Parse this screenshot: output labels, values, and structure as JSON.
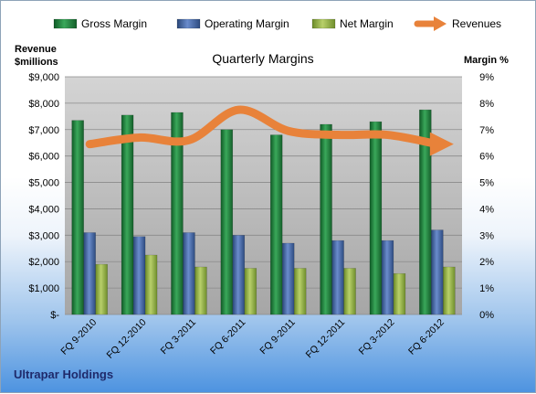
{
  "company_label": "Ultrapar Holdings",
  "colors": {
    "gross": "#1e7a3a",
    "operating": "#3c5f9e",
    "net": "#8fae3e",
    "revenues": "#e8823a"
  },
  "chart_data": {
    "type": "bar",
    "title": "Quarterly Margins",
    "ylabel_left": "Revenue $millions",
    "ylabel_right": "Margin %",
    "categories": [
      "FQ 9-2010",
      "FQ 12-2010",
      "FQ 3-2011",
      "FQ 6-2011",
      "FQ 9-2011",
      "FQ 12-2011",
      "FQ 3-2012",
      "FQ 6-2012"
    ],
    "y_left_ticks": [
      "$-",
      "$1,000",
      "$2,000",
      "$3,000",
      "$4,000",
      "$5,000",
      "$6,000",
      "$7,000",
      "$8,000",
      "$9,000"
    ],
    "y_right_ticks": [
      "0%",
      "1%",
      "2%",
      "3%",
      "4%",
      "5%",
      "6%",
      "7%",
      "8%",
      "9%"
    ],
    "ylim_left": [
      0,
      9000
    ],
    "ylim_right": [
      0,
      9
    ],
    "series": [
      {
        "name": "Gross Margin",
        "axis": "right",
        "type": "bar",
        "values": [
          7.35,
          7.55,
          7.65,
          7.0,
          6.8,
          7.2,
          7.3,
          7.75
        ]
      },
      {
        "name": "Operating Margin",
        "axis": "right",
        "type": "bar",
        "values": [
          3.1,
          2.95,
          3.1,
          3.0,
          2.7,
          2.8,
          2.8,
          3.2
        ]
      },
      {
        "name": "Net Margin",
        "axis": "right",
        "type": "bar",
        "values": [
          1.9,
          2.25,
          1.8,
          1.75,
          1.75,
          1.75,
          1.55,
          1.8
        ]
      },
      {
        "name": "Revenues",
        "axis": "left",
        "type": "line",
        "values": [
          6450,
          6700,
          6600,
          7750,
          6950,
          6800,
          6800,
          6450
        ]
      }
    ],
    "legend_position": "top",
    "grid": true
  }
}
